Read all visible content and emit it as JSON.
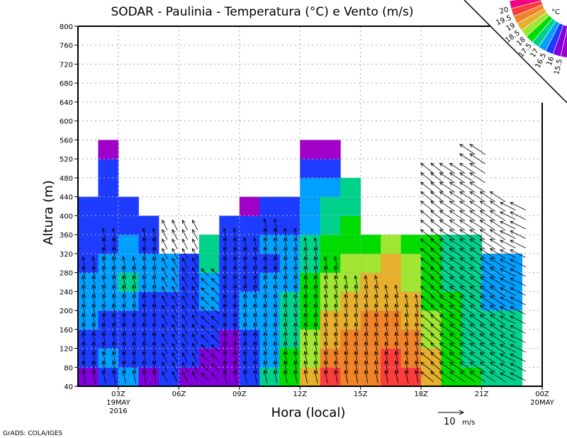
{
  "chart_data": {
    "type": "heatmap",
    "title": "SODAR - Paulinia - Temperatura (°C) e Vento (m/s)",
    "xlabel": "Hora (local)",
    "ylabel": "Altura (m)",
    "ylim": [
      40,
      800
    ],
    "yticks": [
      40,
      80,
      120,
      160,
      200,
      240,
      280,
      320,
      360,
      400,
      440,
      480,
      520,
      560,
      600,
      640,
      680,
      720,
      760,
      800
    ],
    "xlim_hours": [
      1,
      24
    ],
    "xticks": [
      {
        "h": 3,
        "label": "03Z",
        "sub1": "19MAY",
        "sub2": "2016"
      },
      {
        "h": 6,
        "label": "06Z"
      },
      {
        "h": 9,
        "label": "09Z"
      },
      {
        "h": 12,
        "label": "12Z"
      },
      {
        "h": 15,
        "label": "15Z"
      },
      {
        "h": 18,
        "label": "18Z"
      },
      {
        "h": 21,
        "label": "21Z"
      },
      {
        "h": 24,
        "label": "00Z",
        "sub1": "20MAY"
      }
    ],
    "legend": {
      "unit": "°C",
      "levels": [
        15.5,
        16,
        16.5,
        17,
        17.5,
        18,
        18.5,
        19,
        19.5,
        20
      ],
      "labels": [
        "15.5",
        "16",
        "16.5",
        "17",
        "17.5",
        "18",
        "18.5",
        "19",
        "19.5",
        "20"
      ],
      "colors": [
        "#a000c8",
        "#8200dc",
        "#1e3cff",
        "#00a0ff",
        "#00d28c",
        "#00dc00",
        "#a0e632",
        "#e6af2d",
        "#f08228",
        "#fa3c3c",
        "#f00082"
      ],
      "placement": "top-right"
    },
    "temperature": {
      "base_m": 40,
      "step_m": 40,
      "columns": [
        {
          "h": 1,
          "v": [
            15.8,
            16.2,
            16.3,
            16.6,
            16.7,
            16.6,
            16.4,
            16.2,
            16.2,
            16.2
          ]
        },
        {
          "h": 2,
          "v": [
            16.3,
            16.6,
            16.3,
            16.2,
            16.6,
            16.7,
            16.6,
            16.4,
            16.3,
            16.2,
            16.2,
            16.2,
            15.4
          ]
        },
        {
          "h": 3,
          "v": [
            16.6,
            16.2,
            16.2,
            16.2,
            16.6,
            17.1,
            16.6,
            16.6,
            16.2,
            16.2
          ]
        },
        {
          "h": 4,
          "v": [
            15.8,
            16.2,
            16.2,
            16.2,
            16.2,
            16.6,
            16.6,
            16.2,
            16.2
          ]
        },
        {
          "h": 5,
          "v": [
            16.2,
            16.2,
            16.2,
            16.2,
            16.2,
            16.6,
            16.6
          ]
        },
        {
          "h": 6,
          "v": [
            15.8,
            16.2,
            16.2,
            16.2,
            16.2,
            16.2,
            16.2
          ]
        },
        {
          "h": 7,
          "v": [
            15.8,
            15.8,
            16.2,
            16.2,
            16.6,
            16.6,
            17.1,
            17.1
          ]
        },
        {
          "h": 8,
          "v": [
            15.8,
            15.8,
            15.8,
            16.2,
            16.2,
            16.2,
            16.2,
            16.2,
            16.2
          ]
        },
        {
          "h": 9,
          "v": [
            16.2,
            16.2,
            16.2,
            16.6,
            16.6,
            16.2,
            16.2,
            16.2,
            16.2,
            15.4
          ]
        },
        {
          "h": 10,
          "v": [
            17.2,
            16.6,
            16.6,
            16.6,
            16.6,
            16.6,
            16.2,
            16.6,
            16.2,
            16.2
          ]
        },
        {
          "h": 11,
          "v": [
            17.6,
            17.6,
            17.2,
            17.2,
            17.2,
            16.6,
            16.6,
            16.6,
            16.2,
            16.2
          ]
        },
        {
          "h": 12,
          "v": [
            18.6,
            18.2,
            18.2,
            17.6,
            17.6,
            17.6,
            17.2,
            17.2,
            16.6,
            16.6,
            16.6,
            16.2,
            15.4
          ]
        },
        {
          "h": 13,
          "v": [
            19.6,
            19.2,
            18.6,
            18.6,
            18.2,
            18.2,
            17.6,
            17.6,
            17.2,
            17.2,
            16.6,
            16.2,
            15.4
          ]
        },
        {
          "h": 14,
          "v": [
            19.2,
            19.2,
            19.2,
            18.6,
            18.6,
            18.2,
            18.2,
            17.6,
            17.6,
            17.2,
            17.2
          ]
        },
        {
          "h": 15,
          "v": [
            19.2,
            19.2,
            19.2,
            19.2,
            18.6,
            18.6,
            18.2,
            17.6
          ]
        },
        {
          "h": 16,
          "v": [
            19.6,
            19.6,
            19.2,
            19.2,
            18.6,
            18.6,
            18.6,
            18.2
          ]
        },
        {
          "h": 17,
          "v": [
            19.6,
            19.2,
            19.2,
            18.6,
            18.6,
            18.2,
            18.2,
            17.6
          ]
        },
        {
          "h": 18,
          "v": [
            18.6,
            18.6,
            18.2,
            18.2,
            17.6,
            17.6,
            17.6,
            17.6
          ]
        },
        {
          "h": 19,
          "v": [
            17.6,
            17.6,
            17.6,
            17.6,
            17.6,
            17.2,
            17.2,
            17.2
          ]
        },
        {
          "h": 20,
          "v": [
            17.6,
            17.2,
            17.2,
            17.2,
            17.2,
            17.2,
            17.2,
            17.2
          ]
        },
        {
          "h": 21,
          "v": [
            17.2,
            17.2,
            17.2,
            17.2,
            16.6,
            16.6,
            16.6
          ]
        },
        {
          "h": 22,
          "v": [
            17.2,
            17.2,
            17.2,
            17.2,
            16.6,
            16.6,
            16.6
          ]
        }
      ]
    },
    "wind": {
      "base_m": 60,
      "step_m": 20,
      "columns": [
        {
          "h": 1,
          "u": -1,
          "v": 5,
          "top": 300
        },
        {
          "h": 2,
          "u": -1,
          "v": 5,
          "top": 360
        },
        {
          "h": 3,
          "u": -1,
          "v": 5,
          "top": 300
        },
        {
          "h": 4,
          "u": -1,
          "v": 5,
          "top": 360
        },
        {
          "h": 5,
          "u": -2,
          "v": 4,
          "top": 380
        },
        {
          "h": 6,
          "u": -2,
          "v": 4,
          "top": 380
        },
        {
          "h": 7,
          "u": -3,
          "v": 3,
          "top": 280
        },
        {
          "h": 8,
          "u": -1,
          "v": 5,
          "top": 360
        },
        {
          "h": 9,
          "u": -1,
          "v": 5,
          "top": 340
        },
        {
          "h": 10,
          "u": -1,
          "v": 5,
          "top": 380
        },
        {
          "h": 11,
          "u": -1,
          "v": 5,
          "top": 360
        },
        {
          "h": 12,
          "u": -1,
          "v": 5,
          "top": 340
        },
        {
          "h": 13,
          "u": -1,
          "v": 5,
          "top": 300
        },
        {
          "h": 14,
          "u": -1,
          "v": 5,
          "top": 260
        },
        {
          "h": 15,
          "u": -1,
          "v": 5,
          "top": 260
        },
        {
          "h": 16,
          "u": -1,
          "v": 5,
          "top": 240
        },
        {
          "h": 17,
          "u": -1,
          "v": 5,
          "top": 220
        },
        {
          "h": 18,
          "u": -5,
          "v": 4,
          "top": 500
        },
        {
          "h": 19,
          "u": -6,
          "v": 4,
          "top": 500
        },
        {
          "h": 20,
          "u": -6,
          "v": 4,
          "top": 540
        },
        {
          "h": 21,
          "u": -6,
          "v": 4,
          "top": 440
        },
        {
          "h": 22,
          "u": -6,
          "v": 3,
          "top": 420
        }
      ]
    },
    "reference_vector": {
      "value": 10,
      "label": "10",
      "unit": "m/s"
    }
  },
  "footer": "GrADS: COLA/IGES"
}
